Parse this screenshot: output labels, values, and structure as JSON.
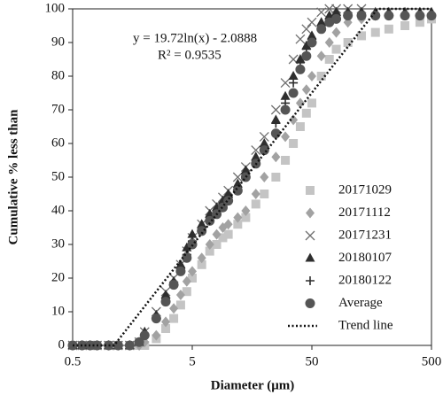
{
  "chart_data": {
    "type": "scatter",
    "x_label": "Diameter (μm)",
    "y_label": "Cumulative % less than",
    "annotations": [
      "y = 19.72ln(x) - 2.0888",
      "R² = 0.9535"
    ],
    "log_x": true,
    "xlim": [
      0.5,
      500
    ],
    "ylim": [
      0,
      100
    ],
    "xticks": [
      0.5,
      5,
      50,
      500
    ],
    "yticks": [
      0,
      10,
      20,
      30,
      40,
      50,
      60,
      70,
      80,
      90,
      100
    ],
    "legend": "lower right",
    "x": [
      0.5,
      0.6,
      0.7,
      0.8,
      1,
      1.2,
      1.5,
      1.8,
      2,
      2.5,
      3,
      3.5,
      4,
      4.5,
      5,
      6,
      7,
      8,
      9,
      10,
      12,
      14,
      17,
      20,
      25,
      30,
      35,
      40,
      45,
      50,
      60,
      70,
      80,
      100,
      130,
      170,
      220,
      300,
      400,
      500
    ],
    "series": [
      {
        "name": "20171029",
        "color": "#c4c4c4",
        "marker": "square",
        "values": [
          0,
          0,
          0,
          0,
          0,
          0,
          0,
          0,
          0,
          2,
          5,
          8,
          12,
          16,
          20,
          24,
          28,
          30,
          32,
          33,
          36,
          38,
          42,
          45,
          50,
          55,
          60,
          65,
          69,
          72,
          80,
          85,
          88,
          90,
          92,
          93,
          94,
          95,
          96,
          97
        ]
      },
      {
        "name": "20171112",
        "color": "#a2a2a2",
        "marker": "diamond",
        "values": [
          0,
          0,
          0,
          0,
          0,
          0,
          0,
          0,
          1,
          3,
          7,
          11,
          15,
          19,
          22,
          26,
          30,
          33,
          35,
          36,
          38,
          40,
          45,
          50,
          56,
          62,
          67,
          72,
          76,
          80,
          86,
          90,
          93,
          96,
          97,
          98,
          null,
          null,
          null,
          null
        ]
      },
      {
        "name": "20171231",
        "color": "#6e6e6e",
        "marker": "x",
        "values": [
          0,
          0,
          0,
          0,
          0,
          0,
          0,
          1,
          4,
          10,
          16,
          20,
          24,
          28,
          32,
          36,
          40,
          42,
          44,
          46,
          50,
          53,
          58,
          62,
          70,
          78,
          85,
          91,
          94,
          96,
          99,
          100,
          100,
          100,
          100,
          null,
          null,
          null,
          null,
          null
        ]
      },
      {
        "name": "20180107",
        "color": "#2e2e2e",
        "marker": "triangle",
        "values": [
          0,
          0,
          0,
          0,
          0,
          0,
          0,
          1,
          4,
          9,
          15,
          19,
          24,
          29,
          33,
          36,
          39,
          41,
          43,
          45,
          48,
          52,
          56,
          60,
          67,
          74,
          80,
          85,
          89,
          92,
          96,
          98,
          99,
          99,
          99,
          99,
          99,
          99,
          99,
          99
        ]
      },
      {
        "name": "20180122",
        "color": "#2e2e2e",
        "marker": "plus",
        "values": [
          0,
          0,
          0,
          0,
          0,
          0,
          0,
          1,
          3,
          8,
          14,
          18,
          23,
          27,
          31,
          35,
          38,
          40,
          42,
          44,
          47,
          51,
          55,
          59,
          66,
          72,
          78,
          84,
          88,
          91,
          95,
          97,
          98,
          98,
          null,
          null,
          null,
          null,
          null,
          null
        ]
      },
      {
        "name": "Average",
        "color": "#555555",
        "marker": "circle",
        "values": [
          0,
          0,
          0,
          0,
          0,
          0,
          0,
          1,
          3,
          8,
          13,
          18,
          22,
          26,
          30,
          34,
          37,
          39,
          41,
          43,
          46,
          50,
          54,
          58,
          63,
          70,
          75,
          82,
          86,
          90,
          94,
          96,
          97,
          98,
          98,
          98,
          98,
          98,
          98,
          98
        ]
      },
      {
        "name": "Trend line",
        "color": "#111111",
        "line_style": "dotted",
        "x": [
          0.5,
          1.11,
          177,
          500
        ],
        "values": [
          0,
          0,
          100,
          100
        ]
      }
    ]
  }
}
